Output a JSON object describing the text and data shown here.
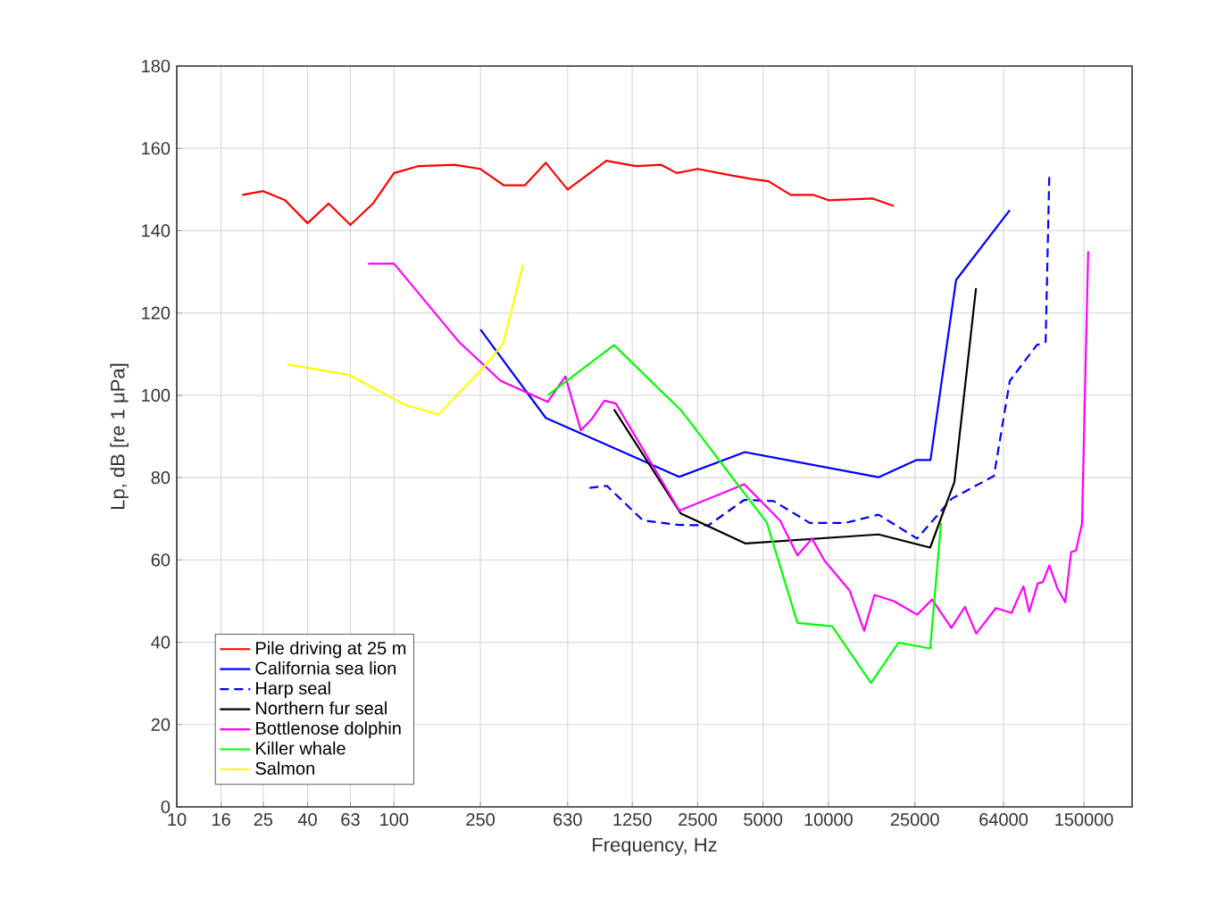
{
  "chart_data": {
    "type": "line",
    "xlabel": "Frequency, Hz",
    "ylabel": "Lp, dB [re 1 μPa]",
    "log": "x",
    "xlim": [
      10,
      250000
    ],
    "ylim": [
      0,
      180
    ],
    "xticks": [
      10,
      16,
      25,
      40,
      63,
      100,
      250,
      630,
      1250,
      2500,
      5000,
      10000,
      25000,
      64000,
      150000
    ],
    "yticks": [
      0,
      20,
      40,
      60,
      80,
      100,
      120,
      140,
      160,
      180
    ],
    "grid": true,
    "legend": "bottom left",
    "series": [
      {
        "name": "Pile driving at 25 m",
        "color": "#ff0000",
        "line_style": "solid",
        "x": [
          20,
          25,
          31.5,
          40,
          50,
          63,
          80,
          100,
          130,
          190,
          250,
          320,
          400,
          500,
          630,
          950,
          1300,
          1700,
          2000,
          2500,
          3500,
          4400,
          5300,
          6700,
          8500,
          10000,
          16000,
          20000
        ],
        "values": [
          148.7,
          149.6,
          147.4,
          141.8,
          146.6,
          141.4,
          146.6,
          154,
          155.7,
          156,
          155,
          151,
          151,
          156.5,
          150,
          157,
          155.7,
          156,
          154,
          155,
          153.5,
          152.6,
          152,
          148.7,
          148.7,
          147.4,
          147.8,
          146
        ]
      },
      {
        "name": "California sea lion",
        "color": "#0000ff",
        "line_style": "solid",
        "x": [
          250,
          500,
          2055,
          4120,
          17000,
          25500,
          29500,
          38700,
          68400
        ],
        "values": [
          116,
          94.5,
          80.2,
          86.2,
          80.1,
          84.3,
          84.3,
          128,
          145
        ]
      },
      {
        "name": "Harp seal",
        "color": "#0000ff",
        "line_style": "dashed",
        "x": [
          795,
          955,
          1400,
          2050,
          2800,
          4100,
          5600,
          8200,
          12000,
          17000,
          25600,
          37000,
          57800,
          68400,
          91000,
          100000,
          104000
        ],
        "values": [
          77.5,
          78,
          69.6,
          68.5,
          68.4,
          74.6,
          74.3,
          69,
          69,
          71,
          65.2,
          74.9,
          80.4,
          103.5,
          112.2,
          113,
          154
        ]
      },
      {
        "name": "Northern fur seal",
        "color": "#000000",
        "line_style": "solid",
        "x": [
          1030,
          2090,
          4160,
          17000,
          29400,
          38000,
          47800
        ],
        "values": [
          96.6,
          71.3,
          64,
          66.2,
          63,
          78.9,
          126
        ]
      },
      {
        "name": "Bottlenose dolphin",
        "color": "#ff00ff",
        "line_style": "solid",
        "x": [
          76,
          100,
          199,
          310,
          510,
          615,
          725,
          810,
          930,
          1050,
          2060,
          4100,
          6000,
          7200,
          8400,
          9600,
          12500,
          14600,
          16300,
          20000,
          25600,
          30000,
          36800,
          42500,
          47900,
          59000,
          69600,
          79000,
          84000,
          92000,
          97000,
          104000,
          113000,
          123000,
          131000,
          138000,
          147000,
          157000
        ],
        "values": [
          132,
          132,
          113,
          103.5,
          98.4,
          104.6,
          91.5,
          94.1,
          98.7,
          98,
          72,
          78.4,
          69.5,
          61.1,
          65.2,
          59.8,
          52.6,
          42.8,
          51.5,
          50,
          46.7,
          50.4,
          43.5,
          48.6,
          42.1,
          48.3,
          47.1,
          53.6,
          47.4,
          54.3,
          54.6,
          58.7,
          53.2,
          49.7,
          61.9,
          62.3,
          68.8,
          135
        ]
      },
      {
        "name": "Killer whale",
        "color": "#00ff00",
        "line_style": "solid",
        "x": [
          510,
          1030,
          2100,
          5200,
          7200,
          10400,
          15700,
          21000,
          29400,
          33000
        ],
        "values": [
          100,
          112.2,
          96.3,
          69.1,
          44.7,
          43.9,
          30.1,
          39.9,
          38.5,
          69
        ]
      },
      {
        "name": "Salmon",
        "color": "#ffff00",
        "line_style": "solid",
        "x": [
          32.4,
          61.6,
          112,
          160,
          255,
          318,
          393
        ],
        "values": [
          107.5,
          105,
          97.7,
          95.3,
          106.4,
          112.6,
          131.7
        ]
      }
    ]
  }
}
